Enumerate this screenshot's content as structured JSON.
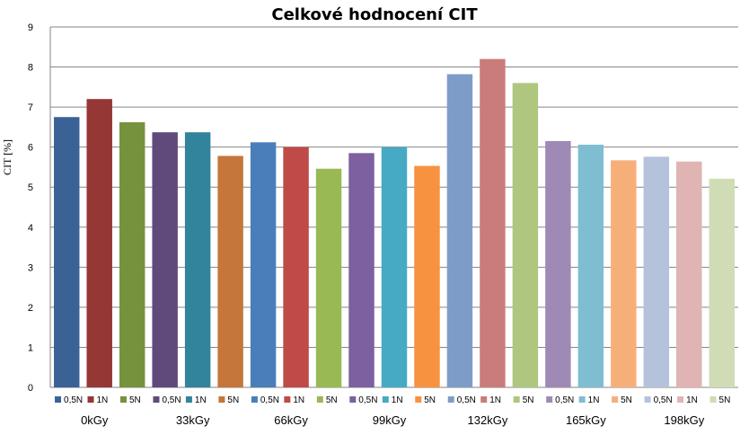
{
  "chart_data": {
    "type": "bar",
    "title": "Celkové hodnocení CIT",
    "xlabel": "",
    "ylabel": "CIT [%]",
    "ylim": [
      0,
      9
    ],
    "yticks": [
      "0",
      "1",
      "2",
      "3",
      "4",
      "5",
      "6",
      "7",
      "8",
      "9"
    ],
    "grid": true,
    "groups": [
      "0kGy",
      "33kGy",
      "66kGy",
      "99kGy",
      "132kGy",
      "165kGy",
      "198kGy"
    ],
    "series_labels": [
      "0,5N",
      "1N",
      "5N"
    ],
    "bars": [
      {
        "label": "0,5N",
        "group": "0kGy",
        "value": 6.75,
        "color": "#3b6296"
      },
      {
        "label": "1N",
        "group": "0kGy",
        "value": 7.2,
        "color": "#953735"
      },
      {
        "label": "5N",
        "group": "0kGy",
        "value": 6.62,
        "color": "#76923c"
      },
      {
        "label": "0,5N",
        "group": "33kGy",
        "value": 6.37,
        "color": "#604a7b"
      },
      {
        "label": "1N",
        "group": "33kGy",
        "value": 6.37,
        "color": "#31849b"
      },
      {
        "label": "5N",
        "group": "33kGy",
        "value": 5.78,
        "color": "#c5763a"
      },
      {
        "label": "0,5N",
        "group": "66kGy",
        "value": 6.12,
        "color": "#4a7ebb"
      },
      {
        "label": "1N",
        "group": "66kGy",
        "value": 6.0,
        "color": "#be4b48"
      },
      {
        "label": "5N",
        "group": "66kGy",
        "value": 5.46,
        "color": "#98b954"
      },
      {
        "label": "0,5N",
        "group": "99kGy",
        "value": 5.85,
        "color": "#7d60a0"
      },
      {
        "label": "1N",
        "group": "99kGy",
        "value": 6.0,
        "color": "#46aac5"
      },
      {
        "label": "5N",
        "group": "99kGy",
        "value": 5.53,
        "color": "#f69240"
      },
      {
        "label": "0,5N",
        "group": "132kGy",
        "value": 7.82,
        "color": "#7e9cc8"
      },
      {
        "label": "1N",
        "group": "132kGy",
        "value": 8.2,
        "color": "#ca7c7a"
      },
      {
        "label": "5N",
        "group": "132kGy",
        "value": 7.6,
        "color": "#aec67e"
      },
      {
        "label": "0,5N",
        "group": "165kGy",
        "value": 6.15,
        "color": "#9f8ab6"
      },
      {
        "label": "1N",
        "group": "165kGy",
        "value": 6.06,
        "color": "#7fbdd1"
      },
      {
        "label": "5N",
        "group": "165kGy",
        "value": 5.67,
        "color": "#f7af79"
      },
      {
        "label": "0,5N",
        "group": "198kGy",
        "value": 5.76,
        "color": "#b4c2dc"
      },
      {
        "label": "1N",
        "group": "198kGy",
        "value": 5.64,
        "color": "#dfb4b3"
      },
      {
        "label": "5N",
        "group": "198kGy",
        "value": 5.21,
        "color": "#d0dcb5"
      }
    ]
  }
}
